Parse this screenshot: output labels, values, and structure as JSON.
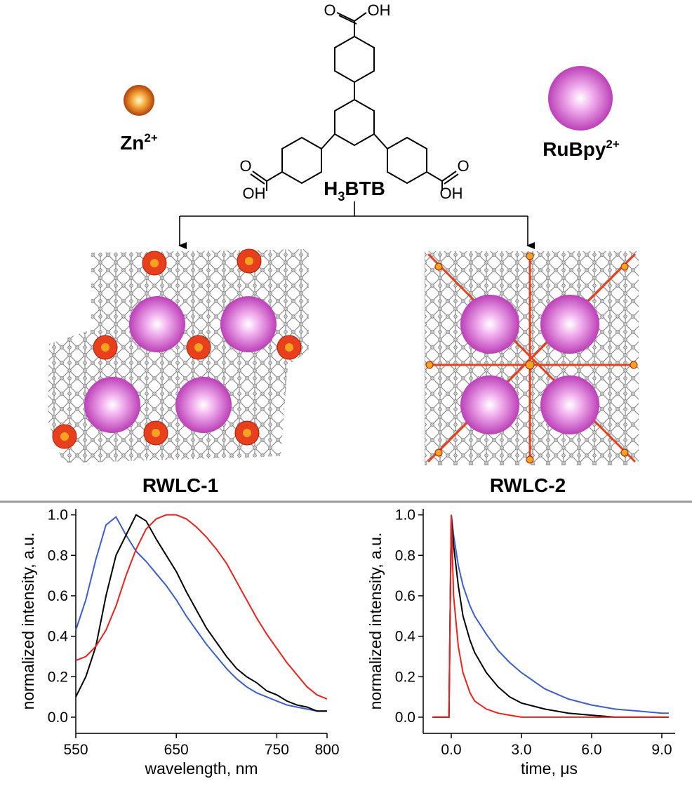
{
  "chart_data": [
    {
      "type": "line",
      "x_label": "wavelength, nm",
      "y_label": "normalized intensity, a.u.",
      "x": [
        550,
        560,
        570,
        580,
        590,
        600,
        610,
        620,
        630,
        640,
        650,
        660,
        670,
        680,
        690,
        700,
        710,
        720,
        730,
        740,
        750,
        760,
        770,
        780,
        790,
        800
      ],
      "series": [
        {
          "color": "#3a5fcd",
          "values": [
            0.43,
            0.58,
            0.78,
            0.95,
            0.99,
            0.9,
            0.82,
            0.77,
            0.71,
            0.65,
            0.58,
            0.5,
            0.43,
            0.36,
            0.3,
            0.24,
            0.19,
            0.15,
            0.12,
            0.1,
            0.08,
            0.06,
            0.05,
            0.04,
            0.03,
            0.03
          ]
        },
        {
          "color": "#000000",
          "values": [
            0.1,
            0.2,
            0.35,
            0.6,
            0.8,
            0.9,
            1.0,
            0.97,
            0.88,
            0.8,
            0.72,
            0.62,
            0.53,
            0.44,
            0.37,
            0.3,
            0.24,
            0.2,
            0.17,
            0.13,
            0.11,
            0.08,
            0.06,
            0.05,
            0.03,
            0.03
          ]
        },
        {
          "color": "#e8231e",
          "values": [
            0.28,
            0.3,
            0.35,
            0.43,
            0.55,
            0.7,
            0.83,
            0.93,
            0.98,
            1.0,
            1.0,
            0.98,
            0.94,
            0.89,
            0.83,
            0.76,
            0.67,
            0.58,
            0.49,
            0.41,
            0.34,
            0.27,
            0.21,
            0.15,
            0.11,
            0.09
          ]
        }
      ],
      "xlim": [
        550,
        800
      ],
      "xticks": [
        550,
        650,
        750,
        800
      ],
      "ylim": [
        -0.08,
        1.03
      ],
      "yticks": [
        {
          "value": 0,
          "label": "0.0"
        },
        {
          "value": 0.2,
          "label": "0.2"
        },
        {
          "value": 0.4,
          "label": "0.4"
        },
        {
          "value": 0.6,
          "label": "0.6"
        },
        {
          "value": 0.8,
          "label": "0.8"
        },
        {
          "value": 1,
          "label": "1.0"
        }
      ]
    },
    {
      "type": "line",
      "x_label": "time, μs",
      "y_label": "normalized intensity, a.u.",
      "x": [
        -0.8,
        -0.1,
        0,
        0.1,
        0.3,
        0.5,
        0.8,
        1.0,
        1.5,
        2,
        2.5,
        3,
        4,
        5,
        6,
        7,
        8,
        9,
        9.3
      ],
      "series": [
        {
          "color": "#3a5fcd",
          "values": [
            0,
            0,
            1.0,
            0.9,
            0.75,
            0.65,
            0.55,
            0.5,
            0.41,
            0.33,
            0.27,
            0.22,
            0.14,
            0.09,
            0.06,
            0.04,
            0.03,
            0.02,
            0.02
          ]
        },
        {
          "color": "#000000",
          "values": [
            0,
            0,
            1.0,
            0.85,
            0.65,
            0.5,
            0.38,
            0.32,
            0.22,
            0.15,
            0.1,
            0.07,
            0.04,
            0.02,
            0.01,
            0,
            0,
            0,
            0
          ]
        },
        {
          "color": "#e8231e",
          "values": [
            0,
            0,
            1.0,
            0.6,
            0.35,
            0.22,
            0.12,
            0.08,
            0.04,
            0.02,
            0.01,
            0,
            0,
            0,
            0,
            0,
            0,
            0,
            0
          ]
        }
      ],
      "xlim": [
        -1.2,
        9.57
      ],
      "xticks": [
        {
          "value": 0,
          "label": "0.0"
        },
        {
          "value": 3,
          "label": "3.0"
        },
        {
          "value": 6,
          "label": "6.0"
        },
        {
          "value": 9,
          "label": "9.0"
        }
      ],
      "ylim": [
        -0.08,
        1.03
      ],
      "yticks": [
        {
          "value": 0,
          "label": "0.0"
        },
        {
          "value": 0.2,
          "label": "0.2"
        },
        {
          "value": 0.4,
          "label": "0.4"
        },
        {
          "value": 0.6,
          "label": "0.6"
        },
        {
          "value": 0.8,
          "label": "0.8"
        },
        {
          "value": 1,
          "label": "1.0"
        }
      ]
    }
  ],
  "scheme": {
    "zn": {
      "base": "Zn",
      "sup": "2+"
    },
    "ruthenium": {
      "base": "RuBpy",
      "sup": "2+"
    },
    "linker": {
      "h": "H",
      "sub": "3",
      "rest": "BTB"
    },
    "atoms": [
      "O",
      "OH",
      "O",
      "OH",
      "O",
      "OH"
    ],
    "frameworks": [
      "RWLC-1",
      "RWLC-2"
    ]
  }
}
